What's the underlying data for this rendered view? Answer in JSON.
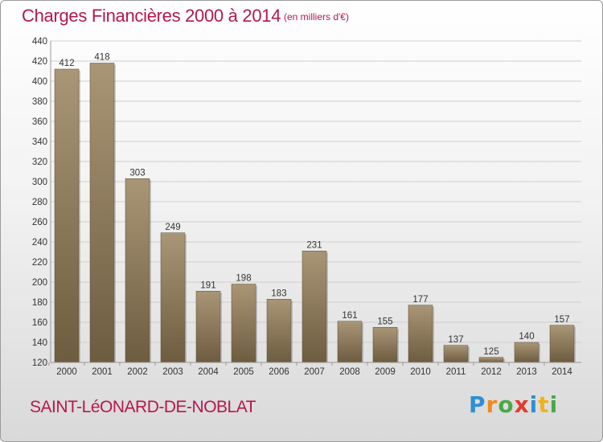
{
  "header": {
    "title": "Charges Financières 2000 à 2014",
    "subtitle": "(en milliers d'€)"
  },
  "footer": {
    "commune": "SAINT-LéONARD-DE-NOBLAT",
    "logo_text": "Proxiti",
    "logo_colors": [
      "#2e8fd6",
      "#f08a1c",
      "#4aa84a",
      "#e23b2e",
      "#2e8fd6",
      "#f0b21c",
      "#4aa84a"
    ]
  },
  "colors": {
    "title": "#b5174f",
    "bar_top": "#a99676",
    "bar_bottom": "#6e5c40",
    "grid": "#cfcfcf"
  },
  "chart_data": {
    "type": "bar",
    "title": "Charges Financières 2000 à 2014",
    "subtitle": "(en milliers d'€)",
    "categories": [
      "2000",
      "2001",
      "2002",
      "2003",
      "2004",
      "2005",
      "2006",
      "2007",
      "2008",
      "2009",
      "2010",
      "2011",
      "2012",
      "2013",
      "2014"
    ],
    "values": [
      412,
      418,
      303,
      249,
      191,
      198,
      183,
      231,
      161,
      155,
      177,
      137,
      125,
      140,
      157
    ],
    "ylim": [
      120,
      440
    ],
    "yticks": [
      120,
      140,
      160,
      180,
      200,
      220,
      240,
      260,
      280,
      300,
      320,
      340,
      360,
      380,
      400,
      420,
      440
    ],
    "grid": true,
    "xlabel": "",
    "ylabel": ""
  }
}
